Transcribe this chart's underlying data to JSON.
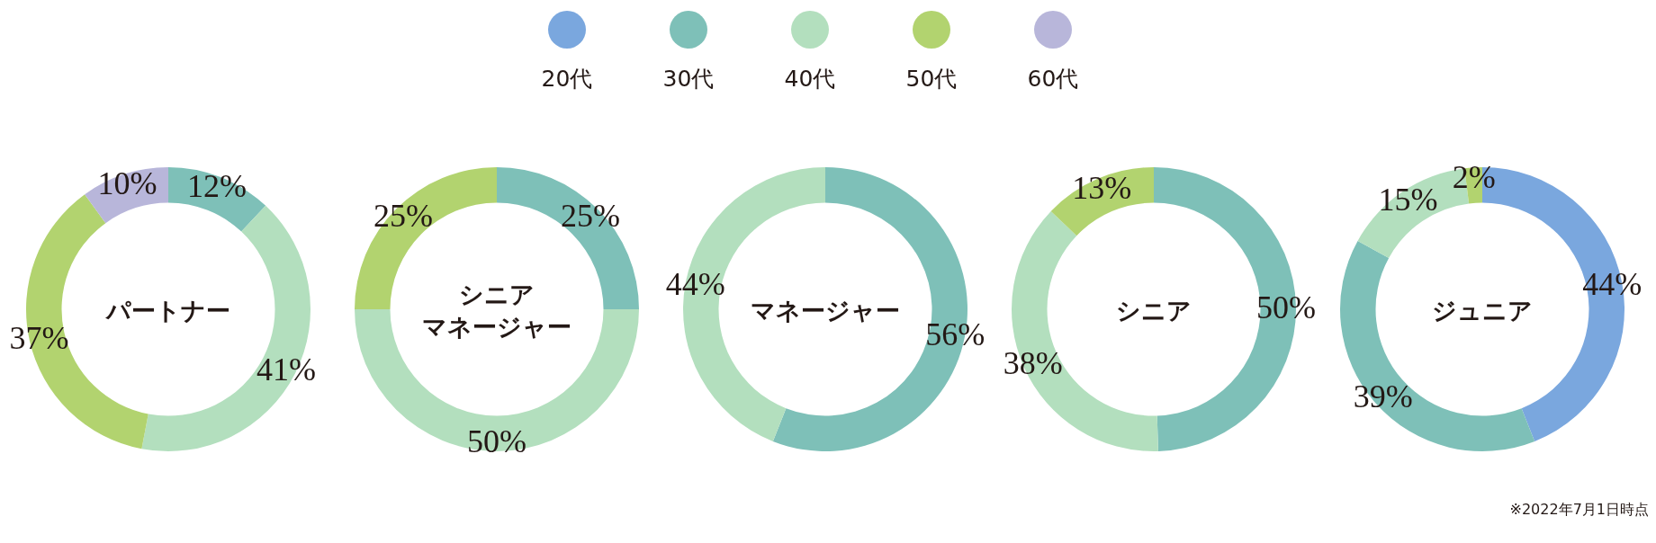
{
  "chart_data": {
    "type": "donut",
    "legend": "top",
    "categories": [
      "20代",
      "30代",
      "40代",
      "50代",
      "60代"
    ],
    "colors": [
      "#7aa7de",
      "#7ec0b8",
      "#b3dfbe",
      "#b2d36f",
      "#b8b6da"
    ],
    "series": [
      {
        "name": "パートナー",
        "values": [
          null,
          12,
          41,
          37,
          10
        ],
        "value_labels": [
          null,
          "12%",
          "41%",
          "37%",
          "10%"
        ]
      },
      {
        "name": "シニアマネージャー",
        "values": [
          null,
          25,
          50,
          25,
          null
        ],
        "value_labels": [
          null,
          "25%",
          "50%",
          "25%",
          null
        ]
      },
      {
        "name": "マネージャー",
        "values": [
          null,
          56,
          44,
          null,
          null
        ],
        "value_labels": [
          null,
          "56%",
          "44%",
          null,
          null
        ]
      },
      {
        "name": "シニア",
        "values": [
          null,
          50,
          38,
          13,
          null
        ],
        "value_labels": [
          null,
          "50%",
          "38%",
          "13%",
          null
        ]
      },
      {
        "name": "ジュニア",
        "values": [
          44,
          39,
          15,
          2,
          null
        ],
        "value_labels": [
          "44%",
          "39%",
          "15%",
          "2%",
          null
        ]
      }
    ],
    "annotations": [
      "※2022年7月1日時点"
    ]
  }
}
